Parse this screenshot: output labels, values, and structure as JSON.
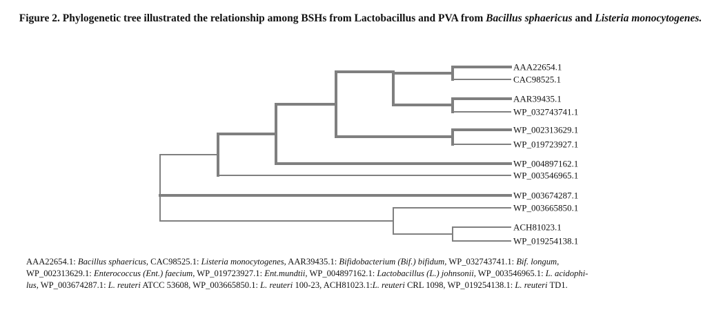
{
  "figure": {
    "title_parts": [
      {
        "text": "Figure 2. Phylogenetic tree illustrated the relationship among BSHs from Lactobacillus and PVA from ",
        "italic": false
      },
      {
        "text": "Bacillus sphaericus",
        "italic": true
      },
      {
        "text": " and ",
        "italic": false
      },
      {
        "text": "Listeria monocytogenes.",
        "italic": true
      }
    ]
  },
  "tree": {
    "line_color": "#7f7f7f",
    "leaves": [
      "AAA22654.1",
      "CAC98525.1",
      "AAR39435.1",
      "WP_032743741.1",
      "WP_002313629.1",
      "WP_019723927.1",
      "WP_004897162.1",
      "WP_003546965.1",
      "WP_003674287.1",
      "WP_003665850.1",
      "ACH81023.1",
      "WP_019254138.1"
    ]
  },
  "caption": {
    "lines": [
      [
        {
          "t": "AAA22654.1: ",
          "i": false
        },
        {
          "t": "Bacillus sphaericus",
          "i": true
        },
        {
          "t": ", CAC98525.1: ",
          "i": false
        },
        {
          "t": "Listeria monocytogenes",
          "i": true
        },
        {
          "t": ", AAR39435.1: ",
          "i": false
        },
        {
          "t": "Bifidobacterium (Bif.) bifidum",
          "i": true
        },
        {
          "t": ", WP_032743741.1: ",
          "i": false
        },
        {
          "t": "Bif. longum",
          "i": true
        },
        {
          "t": ",",
          "i": false
        }
      ],
      [
        {
          "t": "WP_002313629.1: ",
          "i": false
        },
        {
          "t": "Enterococcus (Ent.) faecium",
          "i": true
        },
        {
          "t": ", WP_019723927.1: ",
          "i": false
        },
        {
          "t": "Ent.mundtii",
          "i": true
        },
        {
          "t": ", WP_004897162.1: ",
          "i": false
        },
        {
          "t": "Lactobacillus (L.) johnsonii",
          "i": true
        },
        {
          "t": ", WP_003546965.1: ",
          "i": false
        },
        {
          "t": "L. acidophi-",
          "i": true
        }
      ],
      [
        {
          "t": "lus",
          "i": true
        },
        {
          "t": ", WP_003674287.1: ",
          "i": false
        },
        {
          "t": "L. reuteri",
          "i": true
        },
        {
          "t": " ATCC 53608,   WP_003665850.1: ",
          "i": false
        },
        {
          "t": "L. reuteri",
          "i": true
        },
        {
          "t": " 100-23, ACH81023.1:",
          "i": false
        },
        {
          "t": "L. reuteri",
          "i": true
        },
        {
          "t": " CRL 1098, WP_019254138.1: ",
          "i": false
        },
        {
          "t": "L. reuteri",
          "i": true
        },
        {
          "t": " TD1.",
          "i": false
        }
      ]
    ]
  }
}
